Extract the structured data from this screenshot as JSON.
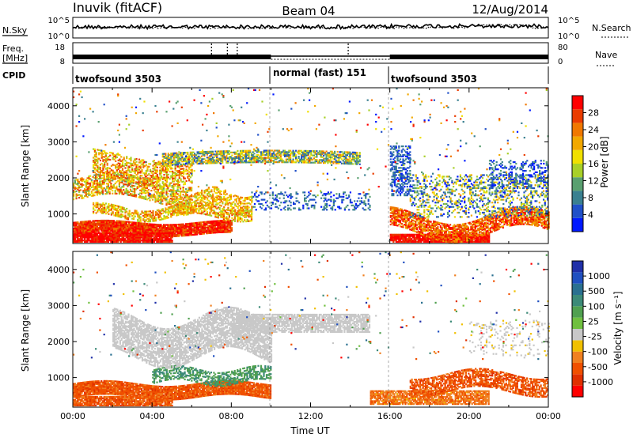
{
  "header": {
    "station": "Inuvik (fitACF)",
    "beam": "Beam 04",
    "date": "12/Aug/2014"
  },
  "summary": {
    "nsky_label": "N.Sky",
    "nsearch_label": "N.Search",
    "nsky_ticks": [
      "10^5",
      "10^0"
    ],
    "nsearch_ticks": [
      "10^5",
      "10^0"
    ],
    "freq_label_1": "Freq.",
    "freq_label_2": "[MHz]",
    "freq_ticks": [
      "18",
      "8"
    ],
    "nave_label": "Nave",
    "nave_ticks": [
      "80",
      "0"
    ],
    "cpid_label": "CPID",
    "cpid_segments": [
      {
        "label": "twofsound 3503",
        "start_hour": 0,
        "end_hour": 10
      },
      {
        "label": "normal (fast) 151",
        "start_hour": 10,
        "end_hour": 16
      },
      {
        "label": "twofsound 3503",
        "start_hour": 16,
        "end_hour": 24
      }
    ]
  },
  "chart_data": [
    {
      "type": "heatmap",
      "name": "power",
      "ylabel": "Slant Range [km]",
      "xlim": [
        0,
        24
      ],
      "ylim": [
        180,
        4500
      ],
      "yticks": [
        "1000",
        "2000",
        "3000",
        "4000"
      ],
      "colorbar_label": "Power [dB]",
      "colorbar_ticks": [
        "4",
        "8",
        "12",
        "16",
        "20",
        "24",
        "28"
      ],
      "colorbar_colors": [
        "#0019ff",
        "#2050c8",
        "#3a8090",
        "#5aa070",
        "#a8d028",
        "#f0e000",
        "#f2a800",
        "#f07800",
        "#ea3c00",
        "#ff0000"
      ]
    },
    {
      "type": "heatmap",
      "name": "velocity",
      "ylabel": "Slant Range [km]",
      "xlabel": "Time UT",
      "xlim": [
        0,
        24
      ],
      "ylim": [
        180,
        4500
      ],
      "xticks": [
        "00:00",
        "04:00",
        "08:00",
        "12:00",
        "16:00",
        "20:00",
        "00:00"
      ],
      "yticks": [
        "1000",
        "2000",
        "3000",
        "4000"
      ],
      "colorbar_label": "Velocity [m s⁻¹]",
      "colorbar_ticks": [
        "1000",
        "500",
        "100",
        "25",
        "-25",
        "-100",
        "-500",
        "-1000"
      ],
      "colorbar_colors": [
        "#2030a8",
        "#2050c0",
        "#2a7090",
        "#3c8a78",
        "#50a050",
        "#70c040",
        "#c8c8c8",
        "#f0c000",
        "#f08020",
        "#f05000",
        "#e03000",
        "#ff0000"
      ]
    }
  ]
}
